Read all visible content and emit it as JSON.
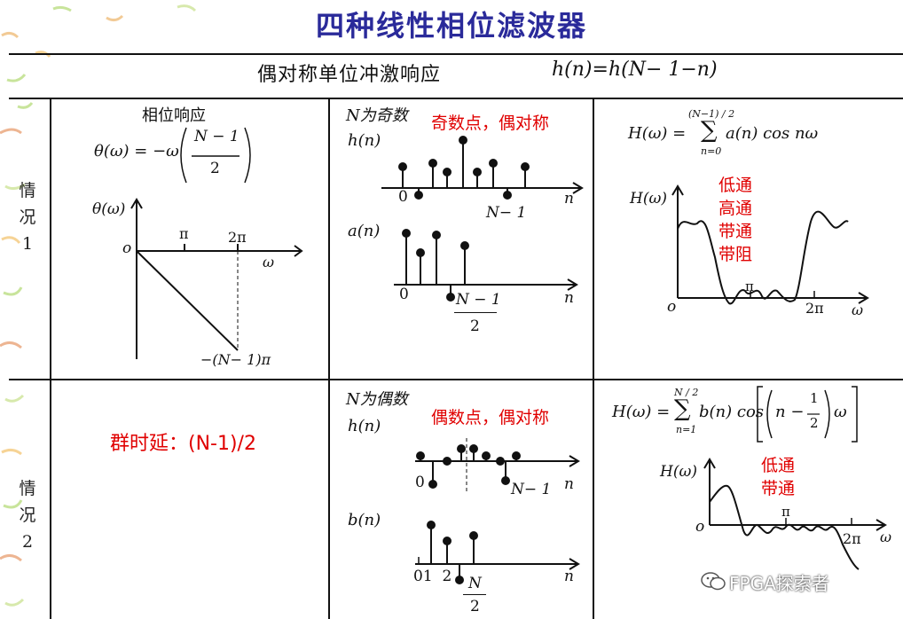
{
  "title": "四种线性相位滤波器",
  "header": {
    "label": "偶对称单位冲激响应",
    "formula": "h(n)=h(N− 1−n)"
  },
  "rows": {
    "case1_label": [
      "情",
      "况",
      "1"
    ],
    "case2_label": [
      "情",
      "况",
      "2"
    ]
  },
  "phase": {
    "title": "相位响应",
    "formula_lhs": "θ(ω) = −ω",
    "formula_num": "N − 1",
    "formula_den": "2",
    "axis_label": "θ(ω)",
    "origin": "o",
    "tick_pi": "π",
    "tick_2pi": "2π",
    "x_axis": "ω",
    "end_label": "−(N− 1)π",
    "group_delay": "群时延：(N-1)/2"
  },
  "case1_seq": {
    "heading": "N为奇数",
    "note": "奇数点，偶对称",
    "h_label": "h(n)",
    "h_zero": "0",
    "h_end": "N− 1",
    "h_n_axis": "n",
    "a_label": "a(n)",
    "a_zero": "0",
    "a_num": "N − 1",
    "a_den": "2",
    "a_n_axis": "n"
  },
  "case1_freq": {
    "formula_lhs": "H(ω) =",
    "sum_top": "(N−1) / 2",
    "sum_bottom": "n=0",
    "formula_rhs": "a(n) cos nω",
    "axis_label": "H(ω)",
    "types": [
      "低通",
      "高通",
      "带通",
      "带阻"
    ],
    "origin": "o",
    "tick_pi": "π",
    "tick_2pi": "2π",
    "x_axis": "ω"
  },
  "case2_seq": {
    "heading": "N为偶数",
    "note": "偶数点，偶对称",
    "h_label": "h(n)",
    "h_zero": "0",
    "h_end": "N− 1",
    "h_n_axis": "n",
    "b_label": "b(n)",
    "b_ticks": "01  2",
    "b_num": "N",
    "b_den": "2",
    "b_n_axis": "n"
  },
  "case2_freq": {
    "formula_lhs": "H(ω) =",
    "sum_top": "N / 2",
    "sum_bottom": "n=1",
    "formula_mid": "b(n) cos",
    "formula_in": "n −",
    "half_num": "1",
    "half_den": "2",
    "formula_end": "ω",
    "axis_label": "H(ω)",
    "types": [
      "低通",
      "带通"
    ],
    "origin": "o",
    "tick_pi": "π",
    "tick_2pi": "2π",
    "x_axis": "ω"
  },
  "watermark": "FPGA探索者"
}
